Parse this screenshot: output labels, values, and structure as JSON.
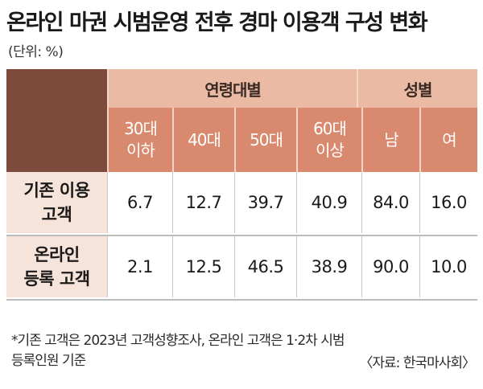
{
  "title": "온라인 마권 시범운영 전후 경마 이용객 구성 변화",
  "unit": "(단위: %)",
  "header": {
    "age_group": "연령대별",
    "gender_group": "성별",
    "age_cols": [
      "30대\n이하",
      "40대",
      "50대",
      "60대\n이상"
    ],
    "gender_cols": [
      "남",
      "여"
    ]
  },
  "chart_data": {
    "type": "table",
    "columns": [
      "30대 이하",
      "40대",
      "50대",
      "60대 이상",
      "남",
      "여"
    ],
    "rows": [
      {
        "label": "기존 이용\n고객",
        "values": [
          "6.7",
          "12.7",
          "39.7",
          "40.9",
          "84.0",
          "16.0"
        ]
      },
      {
        "label": "온라인\n등록 고객",
        "values": [
          "2.1",
          "12.5",
          "46.5",
          "38.9",
          "90.0",
          "10.0"
        ]
      }
    ]
  },
  "footnote": "*기존 고객은 2023년 고객성향조사, 온라인 고객은 1·2차 시범\n등록인원 기준",
  "source": "〈자료: 한국마사회〉",
  "colors": {
    "header_dark": "#7d4a3b",
    "header_mid": "#d98a6e",
    "header_light": "#ebbaa4",
    "rowhead_bg": "#f6e3da"
  }
}
